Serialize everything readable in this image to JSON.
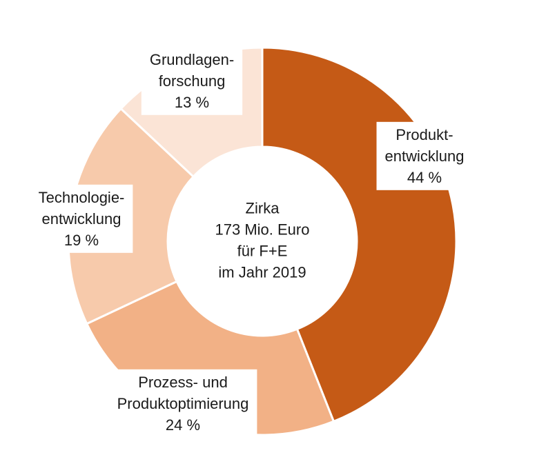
{
  "chart_data": {
    "type": "donut",
    "categories": [
      [
        "Produkt-",
        "entwicklung"
      ],
      [
        "Prozess- und",
        "Produktoptimierung"
      ],
      [
        "Technologie-",
        "entwicklung"
      ],
      [
        "Grundlagen-",
        "forschung"
      ]
    ],
    "values": [
      44,
      24,
      19,
      13
    ],
    "value_labels": [
      "44 %",
      "24 %",
      "19 %",
      "13 %"
    ],
    "colors": [
      "#c55a16",
      "#f2b186",
      "#f7caab",
      "#fbe4d6"
    ],
    "center_text": [
      "Zirka",
      "173 Mio. Euro",
      "für F+E",
      "im Jahr 2019"
    ]
  }
}
